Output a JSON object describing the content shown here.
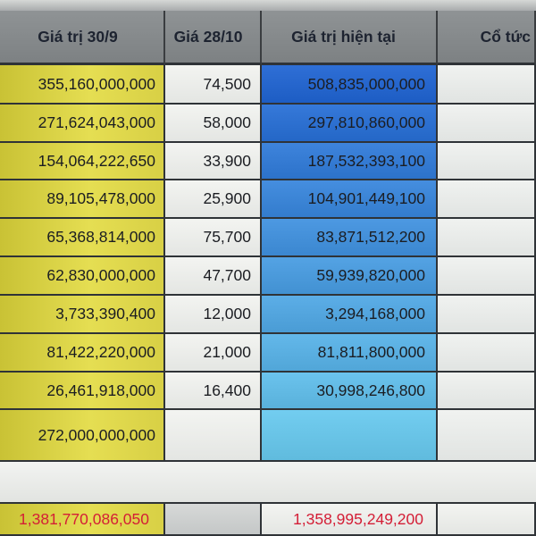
{
  "headers": {
    "col_a": "Giá trị 30/9",
    "col_b": "Giá  28/10",
    "col_c": "Giá trị hiện tại",
    "col_d": "Cổ tức"
  },
  "rows": [
    {
      "value_30_9": "355,160,000,000",
      "price_28_10": "74,500",
      "current_value": "508,835,000,000"
    },
    {
      "value_30_9": "271,624,043,000",
      "price_28_10": "58,000",
      "current_value": "297,810,860,000"
    },
    {
      "value_30_9": "154,064,222,650",
      "price_28_10": "33,900",
      "current_value": "187,532,393,100"
    },
    {
      "value_30_9": "89,105,478,000",
      "price_28_10": "25,900",
      "current_value": "104,901,449,100"
    },
    {
      "value_30_9": "65,368,814,000",
      "price_28_10": "75,700",
      "current_value": "83,871,512,200"
    },
    {
      "value_30_9": "62,830,000,000",
      "price_28_10": "47,700",
      "current_value": "59,939,820,000"
    },
    {
      "value_30_9": "3,733,390,400",
      "price_28_10": "12,000",
      "current_value": "3,294,168,000"
    },
    {
      "value_30_9": "81,422,220,000",
      "price_28_10": "21,000",
      "current_value": "81,811,800,000"
    },
    {
      "value_30_9": "26,461,918,000",
      "price_28_10": "16,400",
      "current_value": "30,998,246,800"
    },
    {
      "value_30_9": "272,000,000,000",
      "price_28_10": "",
      "current_value": ""
    }
  ],
  "totals": {
    "value_30_9": "1,381,770,086,050",
    "current_value": "1,358,995,249,200"
  },
  "colors": {
    "yellow": "#e0d94c",
    "blue_dark": "#2f6fd6",
    "blue_light": "#6ec9ee",
    "total_red": "#d41e36",
    "header_gray": "#878b8d"
  }
}
